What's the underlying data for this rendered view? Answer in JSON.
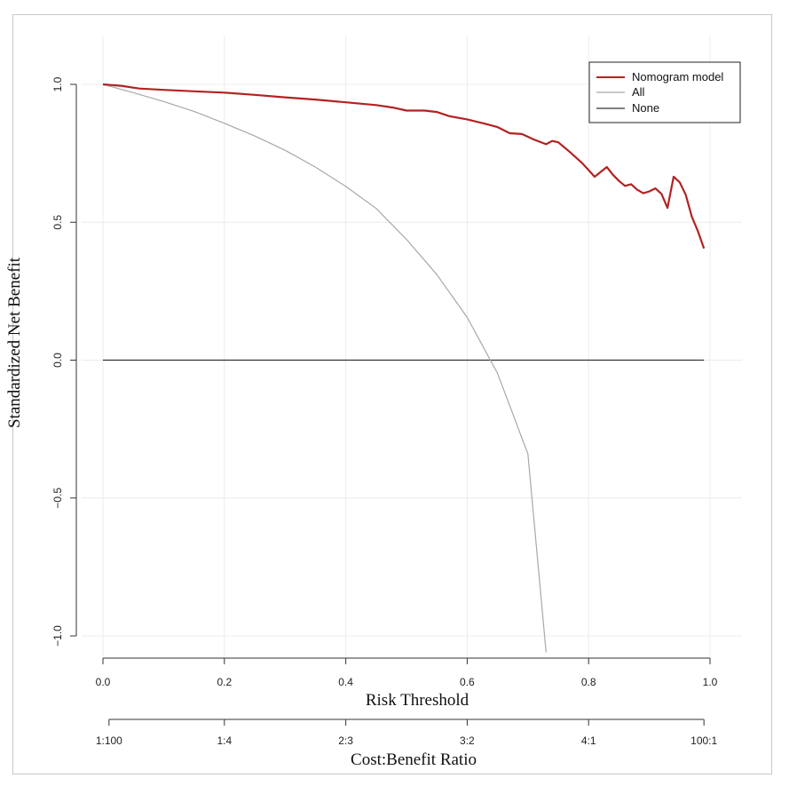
{
  "chart_data": {
    "type": "line",
    "title": "",
    "xlabel": "Risk Threshold",
    "ylabel": "Standardized Net Benefit",
    "secondary_xlabel": "Cost:Benefit Ratio",
    "xlim": [
      0,
      1
    ],
    "ylim": [
      -1,
      1
    ],
    "grid": true,
    "x_ticks": [
      0.0,
      0.2,
      0.4,
      0.6,
      0.8,
      1.0
    ],
    "x_tick_labels": [
      "0.0",
      "0.2",
      "0.4",
      "0.6",
      "0.8",
      "1.0"
    ],
    "y_ticks": [
      -1.0,
      -0.5,
      0.0,
      0.5,
      1.0
    ],
    "y_tick_labels": [
      "−1.0",
      "−0.5",
      "0.0",
      "0.5",
      "1.0"
    ],
    "cost_benefit_ticks": [
      0.01,
      0.2,
      0.4,
      0.6,
      0.8,
      0.99
    ],
    "cost_benefit_labels": [
      "1:100",
      "1:4",
      "2:3",
      "3:2",
      "4:1",
      "100:1"
    ],
    "legend_position": "top-right",
    "series": [
      {
        "name": "Nomogram model",
        "color": "#b22222",
        "x": [
          0.0,
          0.03,
          0.06,
          0.1,
          0.15,
          0.2,
          0.25,
          0.3,
          0.35,
          0.4,
          0.45,
          0.48,
          0.5,
          0.53,
          0.55,
          0.57,
          0.6,
          0.63,
          0.65,
          0.67,
          0.69,
          0.71,
          0.73,
          0.74,
          0.75,
          0.77,
          0.79,
          0.81,
          0.83,
          0.84,
          0.85,
          0.86,
          0.87,
          0.88,
          0.89,
          0.9,
          0.91,
          0.92,
          0.93,
          0.94,
          0.95,
          0.96,
          0.97,
          0.98,
          0.99
        ],
        "y": [
          1.0,
          0.995,
          0.985,
          0.98,
          0.975,
          0.97,
          0.962,
          0.953,
          0.945,
          0.935,
          0.925,
          0.915,
          0.905,
          0.905,
          0.9,
          0.885,
          0.873,
          0.857,
          0.845,
          0.823,
          0.82,
          0.8,
          0.783,
          0.795,
          0.79,
          0.753,
          0.713,
          0.665,
          0.7,
          0.672,
          0.65,
          0.632,
          0.638,
          0.618,
          0.605,
          0.612,
          0.623,
          0.603,
          0.552,
          0.665,
          0.645,
          0.6,
          0.52,
          0.468,
          0.405
        ]
      },
      {
        "name": "All",
        "color": "#a8a8a8",
        "prevalence": 0.64,
        "x": [
          0.0,
          0.05,
          0.1,
          0.15,
          0.2,
          0.25,
          0.3,
          0.35,
          0.4,
          0.45,
          0.5,
          0.55,
          0.6,
          0.65,
          0.7,
          0.73
        ],
        "y": [
          1.0,
          0.97,
          0.938,
          0.902,
          0.859,
          0.813,
          0.761,
          0.7,
          0.63,
          0.55,
          0.438,
          0.31,
          0.155,
          -0.048,
          -0.34,
          -1.06
        ]
      },
      {
        "name": "None",
        "color": "#333333",
        "x": [
          0.0,
          0.99
        ],
        "y": [
          0.0,
          0.0
        ]
      }
    ]
  }
}
